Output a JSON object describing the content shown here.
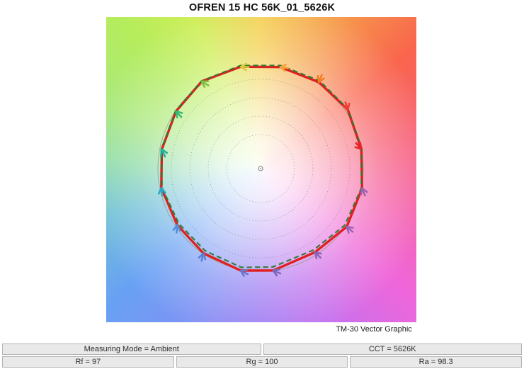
{
  "page": {
    "title": "OFREN 15 HC 56K_01_5626K"
  },
  "chart": {
    "caption": "TM-30 Vector Graphic"
  },
  "info_bar": {
    "row1": [
      "Measuring Mode = Ambient",
      "CCT = 5626K"
    ],
    "row2": [
      "Rf = 97",
      "Rg = 100",
      "Ra = 98.3"
    ]
  },
  "chart_data": {
    "type": "polar-vector",
    "title": "OFREN 15 HC 56K_01_5626K",
    "caption": "TM-30 Vector Graphic",
    "metrics": {
      "Rf": 97,
      "Rg": 100,
      "Ra": 98.3,
      "CCT": "5626K",
      "measuring_mode": "Ambient"
    },
    "reference_radius": 1.0,
    "grid_rings": [
      0.33,
      0.51,
      0.69,
      0.87
    ],
    "colors": {
      "test_curve": "#e02020",
      "reference_curve_dashed": "#2b7a2e",
      "reference_circle": "#9a9a85",
      "grid": "#6f6f6f",
      "center_marker": "#808080",
      "background_corner_top_left": "#b5ed5d",
      "background_corner_top_right": "#f9654d",
      "background_corner_bottom_left": "#68a1f4",
      "background_corner_bottom_right": "#e06df2"
    },
    "hue_bins": [
      {
        "angle": 11,
        "test_r": 1.0,
        "ref_r": 1.005,
        "arrow_color": "#e5252b",
        "arrow_dir": 48
      },
      {
        "angle": 34,
        "test_r": 1.025,
        "ref_r": 1.03,
        "arrow_color": "#ee3d30",
        "arrow_dir": 72
      },
      {
        "angle": 56,
        "test_r": 1.015,
        "ref_r": 1.03,
        "arrow_color": "#f47b20",
        "arrow_dir": 112
      },
      {
        "angle": 79,
        "test_r": 1.007,
        "ref_r": 1.022,
        "arrow_color": "#f2a33c",
        "arrow_dir": 188
      },
      {
        "angle": 101,
        "test_r": 1.01,
        "ref_r": 1.022,
        "arrow_color": "#d6cb3d",
        "arrow_dir": 182
      },
      {
        "angle": 124,
        "test_r": 1.025,
        "ref_r": 1.028,
        "arrow_color": "#7dc242",
        "arrow_dir": 212
      },
      {
        "angle": 146,
        "test_r": 0.995,
        "ref_r": 1.0,
        "arrow_color": "#3cb878",
        "arrow_dir": 226
      },
      {
        "angle": 169,
        "test_r": 0.98,
        "ref_r": 0.985,
        "arrow_color": "#1db39b",
        "arrow_dir": 246
      },
      {
        "angle": 191,
        "test_r": 0.985,
        "ref_r": 0.978,
        "arrow_color": "#2aa8c4",
        "arrow_dir": 262
      },
      {
        "angle": 214,
        "test_r": 0.98,
        "ref_r": 0.96,
        "arrow_color": "#4f8fde",
        "arrow_dir": 274
      },
      {
        "angle": 236,
        "test_r": 0.995,
        "ref_r": 0.966,
        "arrow_color": "#5b7fd4",
        "arrow_dir": 284
      },
      {
        "angle": 259,
        "test_r": 1.012,
        "ref_r": 0.98,
        "arrow_color": "#6a74cb",
        "arrow_dir": 208
      },
      {
        "angle": 277,
        "test_r": 1.0,
        "ref_r": 0.966,
        "arrow_color": "#7b68be",
        "arrow_dir": 203
      },
      {
        "angle": 303,
        "test_r": 0.972,
        "ref_r": 0.946,
        "arrow_color": "#8d64b8",
        "arrow_dir": 224
      },
      {
        "angle": 326,
        "test_r": 1.012,
        "ref_r": 0.988,
        "arrow_color": "#9c64b4",
        "arrow_dir": 221
      },
      {
        "angle": 349,
        "test_r": 1.007,
        "ref_r": 1.0,
        "arrow_color": "#a35fb0",
        "arrow_dir": 248
      }
    ]
  }
}
